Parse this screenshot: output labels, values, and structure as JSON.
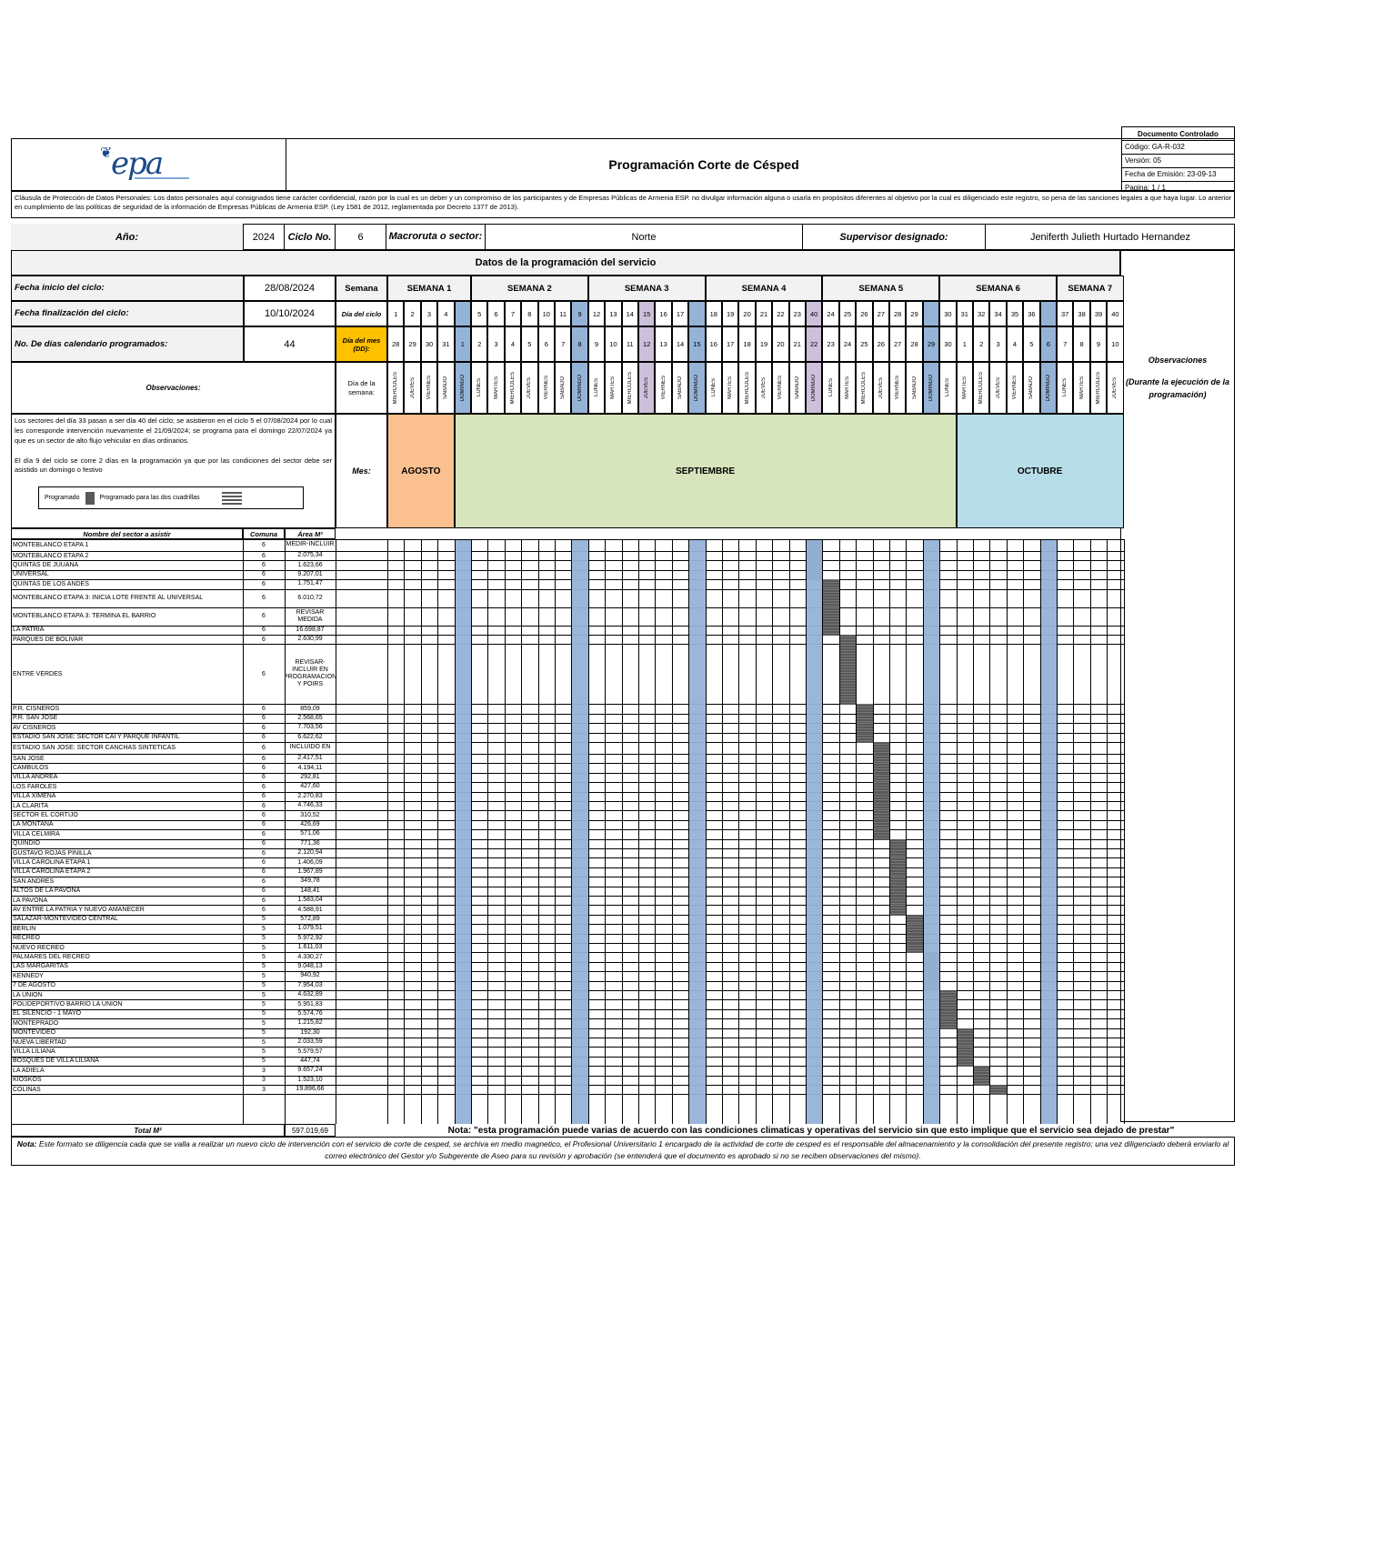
{
  "header": {
    "title": "Programación Corte de Césped",
    "logo_text": "epa",
    "control": [
      "Documento Controlado",
      "Código: GA-R-032",
      "Versión: 05",
      "Fecha de Emisión: 23-09-13",
      "Pagina: 1 / 1"
    ]
  },
  "clause": "Cláusula de Protección de Datos Personales: Los datos personales aquí consignados tiene carácter confidencial, razón por la cual es un deber y un compromiso de los participantes y de Empresas Públicas de Armenia ESP. no divulgar información alguna o usarla en propósitos diferentes al objetivo por la cual es diligenciado este registro, so pena de las sanciones legales a que haya lugar.  Lo anterior en cumplimiento de las políticas de seguridad de la información de Empresas Públicas de Armenia ESP. (Ley 1581 de 2012, reglamentada por Decreto 1377 de 2013).",
  "info": {
    "year_label": "Año:",
    "year": "2024",
    "cycle_label": "Ciclo No.",
    "cycle": "6",
    "macro_label": "Macroruta o sector:",
    "macro": "Norte",
    "supervisor_label": "Supervisor designado:",
    "supervisor": "Jeniferth Julieth Hurtado Hernandez"
  },
  "section_title": "Datos de la programación del servicio",
  "cycle_info": {
    "start_label": "Fecha inicio del ciclo:",
    "start": "28/08/2024",
    "end_label": "Fecha finalización del ciclo:",
    "end": "10/10/2024",
    "days_label": "No. De días calendario programados:",
    "days": "44",
    "week_label": "Semana",
    "cycle_day_label": "Día del ciclo",
    "month_day_label": "Día del mes (DD):",
    "weekday_label": "Día de la semana:",
    "month_label": "Mes:",
    "obs_label": "Observaciones:"
  },
  "weeks": [
    "SEMANA 1",
    "SEMANA 2",
    "SEMANA 3",
    "SEMANA 4",
    "SEMANA 5",
    "SEMANA 6",
    "SEMANA 7"
  ],
  "months": [
    "AGOSTO",
    "SEPTIEMBRE",
    "OCTUBRE"
  ],
  "cycle_days": [
    "1",
    "2",
    "3",
    "4",
    "",
    "5",
    "6",
    "7",
    "8",
    "10",
    "11",
    "9",
    "12",
    "13",
    "14",
    "15",
    "16",
    "17",
    "",
    "18",
    "19",
    "20",
    "21",
    "22",
    "23",
    "40",
    "24",
    "25",
    "26",
    "27",
    "28",
    "29",
    "",
    "30",
    "31",
    "32",
    "34",
    "35",
    "36",
    "",
    "37",
    "38",
    "39",
    "40"
  ],
  "month_days": [
    "28",
    "29",
    "30",
    "31",
    "1",
    "2",
    "3",
    "4",
    "5",
    "6",
    "7",
    "8",
    "9",
    "10",
    "11",
    "12",
    "13",
    "14",
    "15",
    "16",
    "17",
    "18",
    "19",
    "20",
    "21",
    "22",
    "23",
    "24",
    "25",
    "26",
    "27",
    "28",
    "29",
    "30",
    "1",
    "2",
    "3",
    "4",
    "5",
    "6",
    "7",
    "8",
    "9",
    "10"
  ],
  "weekdays": [
    "MIERCOLES",
    "JUEVES",
    "VIERNES",
    "SABADO",
    "DOMINGO",
    "LUNES",
    "MARTES",
    "MIERCOLES",
    "JUEVES",
    "VIERNES",
    "SABADO",
    "DOMINGO",
    "LUNES",
    "MARTES",
    "MIERCOLES",
    "JUEVES",
    "VIERNES",
    "SABADO",
    "DOMINGO",
    "LUNES",
    "MARTES",
    "MIERCOLES",
    "JUEVES",
    "VIERNES",
    "SABADO",
    "DOMINGO",
    "LUNES",
    "MARTES",
    "MIERCOLES",
    "JUEVES",
    "VIERNES",
    "SABADO",
    "DOMINGO",
    "LUNES",
    "MARTES",
    "MIERCOLES",
    "JUEVES",
    "VIERNES",
    "SABADO",
    "DOMINGO",
    "LUNES",
    "MARTES",
    "MIERCOLES",
    "JUEVES"
  ],
  "observations_text": "Los sectores del día 33 pasan a ser día 40 del ciclo; se asistieron en el ciclo 5 el 07/08/2024 por lo cual les corresponde intervención nuevamente el 21/09/2024; se programa para el domingo 22/07/2024 ya que es un sector de alto flujo vehicular en días ordinarios.\n\nEl día 9 del ciclo se corre 2 días en la programación ya que por las condiciones del sector debe ser asistido un domingo o festivo",
  "legend": {
    "programado": "Programado",
    "dos": "Programado para las dos cuadrillas"
  },
  "right_obs": {
    "title": "Observaciones",
    "subtitle": "(Durante la ejecución de la programación)"
  },
  "table_headers": {
    "name": "Nombre del sector a asistir",
    "comuna": "Comuna",
    "area": "Área M²"
  },
  "sectors": [
    [
      "MONTEBLANCO ETAPA 1",
      "6",
      "MEDIR-INCLUIR"
    ],
    [
      "MONTEBLANCO ETAPA 2",
      "6",
      "2.075,34"
    ],
    [
      "QUINTAS DE JUUANA",
      "6",
      "1.623,66"
    ],
    [
      "UNIVERSAL",
      "6",
      "9.207,01"
    ],
    [
      "QUINTAS DE LOS ANDES",
      "6",
      "1.751,47"
    ],
    [
      "MONTEBLANCO ETAPA 3: INICIA LOTE FRENTE AL UNIVERSAL",
      "6",
      "6.010,72"
    ],
    [
      "MONTEBLANCO ETAPA 3: TERMINA EL BARRIO",
      "6",
      "REVISAR MEDIDA"
    ],
    [
      "LA PATRIA",
      "6",
      "16.698,87"
    ],
    [
      "PARQUES DE BOLIVAR",
      "6",
      "2.630,99"
    ],
    [
      "ENTRE VERDES",
      "6",
      "REVISAR-INCLUIR EN PROGRAMACION Y POIRS"
    ],
    [
      "P.R. CISNEROS",
      "6",
      "859,09"
    ],
    [
      "P.R. SAN JOSE",
      "6",
      "2.568,65"
    ],
    [
      "AV CISNEROS",
      "6",
      "7.703,56"
    ],
    [
      "ESTADIO SAN JOSE: SECTOR CAI Y PARQUE INFANTIL",
      "6",
      "6.622,62"
    ],
    [
      "ESTADIO SAN JOSE: SECTOR CANCHAS SINTETICAS",
      "6",
      "INCLUIDO EN"
    ],
    [
      "SAN JOSE",
      "6",
      "2.417,51"
    ],
    [
      "CAMBULOS",
      "6",
      "4.194,11"
    ],
    [
      "VILLA ANDREA",
      "6",
      "292,81"
    ],
    [
      "LOS FAROLES",
      "6",
      "427,60"
    ],
    [
      "VILLA XIMENA",
      "6",
      "2.270,83"
    ],
    [
      "LA CLARITA",
      "6",
      "4.746,33"
    ],
    [
      "SECTOR EL CORTIJO",
      "6",
      "310,52"
    ],
    [
      "LA MONTAÑA",
      "6",
      "426,69"
    ],
    [
      "VILLA CELMIRA",
      "6",
      "571,06"
    ],
    [
      "QUINDIO",
      "6",
      "771,36"
    ],
    [
      "GUSTAVO ROJAS PINILLA",
      "6",
      "2.120,94"
    ],
    [
      "VILLA CAROLINA ETAPA 1",
      "6",
      "1.406,09"
    ],
    [
      "VILLA CAROLINA ETAPA 2",
      "6",
      "1.967,89"
    ],
    [
      "SAN ANDRES",
      "6",
      "349,78"
    ],
    [
      "ALTOS DE LA PAVONA",
      "6",
      "148,41"
    ],
    [
      "LA PAVONA",
      "6",
      "1.583,04"
    ],
    [
      "AV ENTRE LA PATRIA Y NUEVO AMANECER",
      "6",
      "4.588,91"
    ],
    [
      "SALAZAR-MONTEVIDEO CENTRAL",
      "5",
      "572,89"
    ],
    [
      "BERLIN",
      "5",
      "1.079,51"
    ],
    [
      "RECREO",
      "5",
      "5.972,92"
    ],
    [
      "NUEVO RECREO",
      "5",
      "1.611,03"
    ],
    [
      "PALMARES DEL RECREO",
      "5",
      "4.330,27"
    ],
    [
      "LAS MARGARITAS",
      "5",
      "9.048,13"
    ],
    [
      "KENNEDY",
      "5",
      "940,92"
    ],
    [
      "7 DE AGOSTO",
      "5",
      "7.954,03"
    ],
    [
      "LA UNION",
      "5",
      "4.632,89"
    ],
    [
      "POLIDEPORTIVO BARRIO LA UNION",
      "5",
      "5.951,83"
    ],
    [
      "EL SILENCIO - 1 MAYO",
      "5",
      "5.574,76"
    ],
    [
      "MONTEPRADO",
      "5",
      "1.215,82"
    ],
    [
      "MONTEVIDEO",
      "5",
      "192,30"
    ],
    [
      "NUEVA LIBERTAD",
      "5",
      "2.033,59"
    ],
    [
      "VILLA LILIANA",
      "5",
      "5.579,57"
    ],
    [
      "BOSQUES DE VILLA LILIANA",
      "5",
      "447,74"
    ],
    [
      "LA ADIELA",
      "3",
      "9.657,24"
    ],
    [
      "KIOSKOS",
      "3",
      "1.523,10"
    ],
    [
      "COLINAS",
      "3",
      "19.896,66"
    ]
  ],
  "total": {
    "label": "Total M²",
    "value": "597.019,69"
  },
  "nota_service": "Nota: \"esta programación puede varias de acuerdo con las condiciones climaticas y operativas del servicio sin que esto implique que el servicio sea dejado de prestar\"",
  "nota_footer_label": "Nota:",
  "nota_footer": "Este formato se diligencia cada que se valla a realizar un nuevo ciclo de intervención con el servicio de corte de cesped, se archiva en medio magnetico, el Profesional Universitario 1 encargado de la actividad de corte de cesped es el responsable del almacenamiento y la consolidación del presente registro; una vez diligenciado deberá enviarlo al correo electrónico del Gestor y/o Subgerente de Aseo para su revisión y aprobación (se entenderá que el documento es aprobado si no se reciben observaciones del mismo).",
  "colors": {
    "sunday": "#95b3d7",
    "holiday": "#ccc0da",
    "agosto": "#fac090",
    "septiembre": "#d7e4bc",
    "octubre": "#b7dde8",
    "highlight": "#ffc000",
    "scheduled": "#595959",
    "label_bg": "#f2f2f2"
  }
}
